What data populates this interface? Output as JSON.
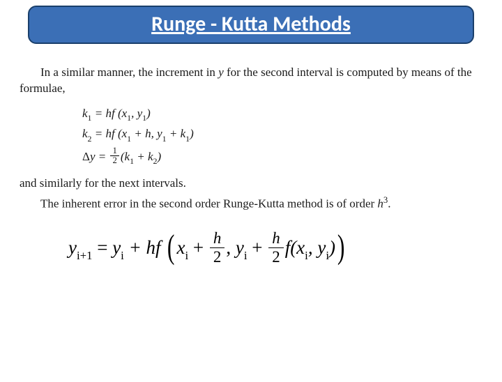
{
  "title": "Runge - Kutta Methods",
  "intro": "In a similar manner, the increment in y for the second interval is computed by means of the formulae,",
  "introIndented": "In a similar manner, the increment",
  "introRest1": " in ",
  "introY": "y",
  "introRest2": " for the second interval is computed by means of the formulae,",
  "eq": {
    "k1": {
      "lhs": "k",
      "s1": "1",
      "rhs": " = hf (x",
      "sx": "1",
      "mid": ", y",
      "sy": "1",
      "end": ")"
    },
    "k2": {
      "lhs": "k",
      "s1": "2",
      "rhs": " = hf (x",
      "sx": "1",
      "mid": " + h, y",
      "sy": "1",
      "mid2": " + k",
      "sk": "1",
      "end": ")"
    },
    "dy": {
      "delta": "Δ",
      "y": "y = ",
      "num": "1",
      "den": "2",
      "open": "(k",
      "s1": "1",
      "mid": " + k",
      "s2": "2",
      "end": ")"
    }
  },
  "after": "and similarly for the next intervals.",
  "error1": "The inherent error in the second order Runge-Kutta method is of order ",
  "errorH": "h",
  "errorExp": "3",
  "errorEnd": ".",
  "big": {
    "ylhs": "y",
    "i1": "i+1",
    "eq": " = ",
    "yrhs": "y",
    "i": "i",
    "plus": " + hf ",
    "x": "x",
    "xi": "i",
    "plus2": " + ",
    "fnum": "h",
    "fden": "2",
    "comma": ", ",
    "y2": "y",
    "yi2": "i",
    "plus3": " + ",
    "f": "f(x",
    "fxi": "i",
    "c2": ", y",
    "fyi": "i",
    "close": ")"
  },
  "colors": {
    "titleBg": "#3b6fb6",
    "titleBorder": "#1a3f6b",
    "titleText": "#ffffff",
    "bodyText": "#1a1a1a"
  }
}
